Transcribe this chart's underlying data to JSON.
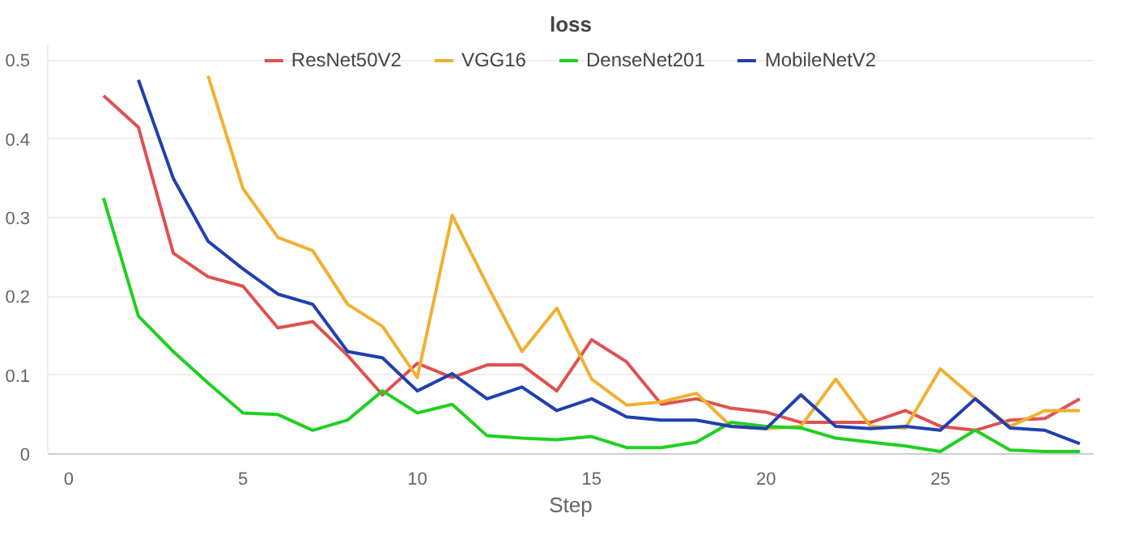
{
  "chart_data": {
    "type": "line",
    "title": "loss",
    "x": [
      1,
      2,
      3,
      4,
      5,
      6,
      7,
      8,
      9,
      10,
      11,
      12,
      13,
      14,
      15,
      16,
      17,
      18,
      19,
      20,
      21,
      22,
      23,
      24,
      25,
      26,
      27,
      28,
      29
    ],
    "series": [
      {
        "name": "ResNet50V2",
        "color": "#e05050",
        "values": [
          0.455,
          0.415,
          0.255,
          0.225,
          0.213,
          0.16,
          0.168,
          0.125,
          0.075,
          0.115,
          0.097,
          0.113,
          0.113,
          0.08,
          0.145,
          0.117,
          0.063,
          0.07,
          0.058,
          0.053,
          0.04,
          0.04,
          0.04,
          0.055,
          0.035,
          0.03,
          0.043,
          0.045,
          0.07
        ]
      },
      {
        "name": "VGG16",
        "color": "#f0b030",
        "values": [
          null,
          null,
          null,
          0.48,
          0.337,
          0.275,
          0.258,
          0.19,
          0.162,
          0.097,
          0.303,
          0.215,
          0.13,
          0.185,
          0.095,
          0.062,
          0.066,
          0.077,
          0.035,
          0.032,
          0.035,
          0.095,
          0.035,
          0.033,
          0.108,
          0.07,
          0.035,
          0.055,
          0.055
        ]
      },
      {
        "name": "DenseNet201",
        "color": "#20d020",
        "values": [
          0.325,
          0.175,
          0.13,
          0.09,
          0.052,
          0.05,
          0.03,
          0.043,
          0.08,
          0.052,
          0.063,
          0.023,
          0.02,
          0.018,
          0.022,
          0.008,
          0.008,
          0.015,
          0.04,
          0.035,
          0.033,
          0.02,
          0.015,
          0.01,
          0.003,
          0.03,
          0.005,
          0.003,
          0.003
        ]
      },
      {
        "name": "MobileNetV2",
        "color": "#2040b0",
        "values": [
          null,
          0.475,
          0.35,
          0.27,
          0.235,
          0.203,
          0.19,
          0.13,
          0.122,
          0.08,
          0.102,
          0.07,
          0.085,
          0.055,
          0.07,
          0.047,
          0.043,
          0.043,
          0.035,
          0.032,
          0.075,
          0.035,
          0.032,
          0.035,
          0.03,
          0.07,
          0.033,
          0.03,
          0.013
        ]
      }
    ],
    "xlim": [
      -0.6,
      29.4
    ],
    "ylim": [
      0,
      0.52
    ],
    "xticks": [
      0,
      5,
      10,
      15,
      20,
      25
    ],
    "yticks": [
      0,
      0.1,
      0.2,
      0.3,
      0.4,
      0.5
    ],
    "grid": "y",
    "legend": "top",
    "xlabel": "Step"
  }
}
